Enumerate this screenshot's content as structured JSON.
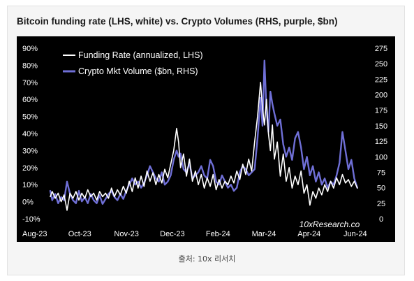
{
  "caption": "출처: 10x 리서치",
  "chart_data": {
    "type": "line",
    "title": "Bitcoin funding rate (LHS, white) vs. Crypto Volumes (RHS, purple, $bn)",
    "source_watermark": "10xResearch.co",
    "x_tick_labels": [
      "Aug-23",
      "Oct-23",
      "Nov-23",
      "Dec-23",
      "Feb-24",
      "Mar-24",
      "Apr-24",
      "Jun-24"
    ],
    "x_range": [
      "2023-08-01",
      "2024-06-10"
    ],
    "y_left": {
      "range": [
        -10,
        90
      ],
      "ticks": [
        -10,
        0,
        10,
        20,
        30,
        40,
        50,
        60,
        70,
        80,
        90
      ],
      "tick_labels": [
        "-10%",
        "0%",
        "10%",
        "20%",
        "30%",
        "40%",
        "50%",
        "60%",
        "70%",
        "80%",
        "90%"
      ]
    },
    "y_right": {
      "range": [
        0,
        275
      ],
      "ticks": [
        0,
        25,
        50,
        75,
        100,
        125,
        150,
        175,
        200,
        225,
        250,
        275
      ],
      "tick_labels": [
        "0",
        "25",
        "50",
        "75",
        "100",
        "125",
        "150",
        "175",
        "200",
        "225",
        "250",
        "275"
      ]
    },
    "legend": {
      "placement": "top-left"
    },
    "grid": false,
    "series": [
      {
        "name": "Funding Rate (annualized, LHS)",
        "axis": "left",
        "color": "#ffffff",
        "points": [
          [
            "2023-08-01",
            3
          ],
          [
            "2023-08-03",
            6
          ],
          [
            "2023-08-06",
            2
          ],
          [
            "2023-08-09",
            5
          ],
          [
            "2023-08-12",
            0
          ],
          [
            "2023-08-15",
            4
          ],
          [
            "2023-08-18",
            -5
          ],
          [
            "2023-08-21",
            5
          ],
          [
            "2023-08-24",
            2
          ],
          [
            "2023-08-27",
            6
          ],
          [
            "2023-08-30",
            1
          ],
          [
            "2023-09-02",
            5
          ],
          [
            "2023-09-05",
            2
          ],
          [
            "2023-09-08",
            7
          ],
          [
            "2023-09-11",
            3
          ],
          [
            "2023-09-14",
            5
          ],
          [
            "2023-09-17",
            1
          ],
          [
            "2023-09-20",
            6
          ],
          [
            "2023-09-23",
            3
          ],
          [
            "2023-09-26",
            5
          ],
          [
            "2023-09-29",
            2
          ],
          [
            "2023-10-02",
            8
          ],
          [
            "2023-10-05",
            3
          ],
          [
            "2023-10-08",
            7
          ],
          [
            "2023-10-11",
            4
          ],
          [
            "2023-10-14",
            9
          ],
          [
            "2023-10-17",
            5
          ],
          [
            "2023-10-20",
            12
          ],
          [
            "2023-10-23",
            6
          ],
          [
            "2023-10-26",
            14
          ],
          [
            "2023-10-29",
            8
          ],
          [
            "2023-11-01",
            15
          ],
          [
            "2023-11-04",
            9
          ],
          [
            "2023-11-07",
            18
          ],
          [
            "2023-11-10",
            12
          ],
          [
            "2023-11-13",
            17
          ],
          [
            "2023-11-16",
            10
          ],
          [
            "2023-11-19",
            16
          ],
          [
            "2023-11-22",
            11
          ],
          [
            "2023-11-25",
            19
          ],
          [
            "2023-11-28",
            14
          ],
          [
            "2023-12-01",
            22
          ],
          [
            "2023-12-04",
            30
          ],
          [
            "2023-12-07",
            43
          ],
          [
            "2023-12-09",
            35
          ],
          [
            "2023-12-11",
            20
          ],
          [
            "2023-12-14",
            28
          ],
          [
            "2023-12-17",
            15
          ],
          [
            "2023-12-20",
            25
          ],
          [
            "2023-12-23",
            12
          ],
          [
            "2023-12-26",
            18
          ],
          [
            "2023-12-29",
            10
          ],
          [
            "2024-01-01",
            16
          ],
          [
            "2024-01-04",
            8
          ],
          [
            "2024-01-07",
            14
          ],
          [
            "2024-01-10",
            9
          ],
          [
            "2024-01-13",
            16
          ],
          [
            "2024-01-16",
            7
          ],
          [
            "2024-01-19",
            13
          ],
          [
            "2024-01-22",
            8
          ],
          [
            "2024-01-25",
            12
          ],
          [
            "2024-01-28",
            10
          ],
          [
            "2024-01-31",
            15
          ],
          [
            "2024-02-03",
            11
          ],
          [
            "2024-02-06",
            18
          ],
          [
            "2024-02-09",
            13
          ],
          [
            "2024-02-12",
            22
          ],
          [
            "2024-02-15",
            16
          ],
          [
            "2024-02-18",
            25
          ],
          [
            "2024-02-21",
            18
          ],
          [
            "2024-02-24",
            35
          ],
          [
            "2024-02-27",
            50
          ],
          [
            "2024-03-01",
            70
          ],
          [
            "2024-03-03",
            55
          ],
          [
            "2024-03-05",
            45
          ],
          [
            "2024-03-07",
            60
          ],
          [
            "2024-03-09",
            40
          ],
          [
            "2024-03-11",
            30
          ],
          [
            "2024-03-13",
            45
          ],
          [
            "2024-03-15",
            25
          ],
          [
            "2024-03-18",
            35
          ],
          [
            "2024-03-21",
            15
          ],
          [
            "2024-03-24",
            28
          ],
          [
            "2024-03-27",
            12
          ],
          [
            "2024-03-30",
            20
          ],
          [
            "2024-04-02",
            8
          ],
          [
            "2024-04-05",
            15
          ],
          [
            "2024-04-08",
            10
          ],
          [
            "2024-04-11",
            18
          ],
          [
            "2024-04-14",
            5
          ],
          [
            "2024-04-17",
            10
          ],
          [
            "2024-04-20",
            -2
          ],
          [
            "2024-04-23",
            6
          ],
          [
            "2024-04-26",
            2
          ],
          [
            "2024-04-29",
            8
          ],
          [
            "2024-05-02",
            4
          ],
          [
            "2024-05-05",
            10
          ],
          [
            "2024-05-08",
            6
          ],
          [
            "2024-05-11",
            12
          ],
          [
            "2024-05-14",
            8
          ],
          [
            "2024-05-17",
            14
          ],
          [
            "2024-05-20",
            10
          ],
          [
            "2024-05-23",
            16
          ],
          [
            "2024-05-26",
            11
          ],
          [
            "2024-05-29",
            13
          ],
          [
            "2024-06-01",
            9
          ],
          [
            "2024-06-04",
            12
          ],
          [
            "2024-06-07",
            8
          ]
        ]
      },
      {
        "name": "Crypto Mkt Volume ($bn, RHS)",
        "axis": "right",
        "color": "#6f6fd6",
        "points": [
          [
            "2023-08-01",
            45
          ],
          [
            "2023-08-03",
            30
          ],
          [
            "2023-08-06",
            40
          ],
          [
            "2023-08-09",
            25
          ],
          [
            "2023-08-12",
            35
          ],
          [
            "2023-08-15",
            30
          ],
          [
            "2023-08-18",
            60
          ],
          [
            "2023-08-21",
            40
          ],
          [
            "2023-08-24",
            30
          ],
          [
            "2023-08-27",
            25
          ],
          [
            "2023-08-30",
            45
          ],
          [
            "2023-09-02",
            28
          ],
          [
            "2023-09-05",
            35
          ],
          [
            "2023-09-08",
            25
          ],
          [
            "2023-09-11",
            40
          ],
          [
            "2023-09-14",
            30
          ],
          [
            "2023-09-17",
            25
          ],
          [
            "2023-09-20",
            38
          ],
          [
            "2023-09-23",
            24
          ],
          [
            "2023-09-26",
            32
          ],
          [
            "2023-09-29",
            40
          ],
          [
            "2023-10-02",
            45
          ],
          [
            "2023-10-05",
            35
          ],
          [
            "2023-10-08",
            30
          ],
          [
            "2023-10-11",
            40
          ],
          [
            "2023-10-14",
            32
          ],
          [
            "2023-10-17",
            45
          ],
          [
            "2023-10-20",
            55
          ],
          [
            "2023-10-23",
            65
          ],
          [
            "2023-10-26",
            55
          ],
          [
            "2023-10-29",
            60
          ],
          [
            "2023-11-01",
            50
          ],
          [
            "2023-11-04",
            58
          ],
          [
            "2023-11-07",
            70
          ],
          [
            "2023-11-10",
            85
          ],
          [
            "2023-11-13",
            75
          ],
          [
            "2023-11-16",
            65
          ],
          [
            "2023-11-19",
            60
          ],
          [
            "2023-11-22",
            75
          ],
          [
            "2023-11-25",
            55
          ],
          [
            "2023-11-28",
            60
          ],
          [
            "2023-12-01",
            70
          ],
          [
            "2023-12-04",
            95
          ],
          [
            "2023-12-07",
            110
          ],
          [
            "2023-12-09",
            100
          ],
          [
            "2023-12-11",
            105
          ],
          [
            "2023-12-14",
            80
          ],
          [
            "2023-12-17",
            75
          ],
          [
            "2023-12-20",
            90
          ],
          [
            "2023-12-23",
            65
          ],
          [
            "2023-12-26",
            70
          ],
          [
            "2023-12-29",
            75
          ],
          [
            "2024-01-01",
            85
          ],
          [
            "2024-01-04",
            70
          ],
          [
            "2024-01-07",
            65
          ],
          [
            "2024-01-10",
            95
          ],
          [
            "2024-01-13",
            85
          ],
          [
            "2024-01-16",
            60
          ],
          [
            "2024-01-19",
            55
          ],
          [
            "2024-01-22",
            70
          ],
          [
            "2024-01-25",
            60
          ],
          [
            "2024-01-28",
            50
          ],
          [
            "2024-01-31",
            55
          ],
          [
            "2024-02-03",
            45
          ],
          [
            "2024-02-06",
            50
          ],
          [
            "2024-02-09",
            75
          ],
          [
            "2024-02-12",
            85
          ],
          [
            "2024-02-15",
            80
          ],
          [
            "2024-02-18",
            70
          ],
          [
            "2024-02-21",
            75
          ],
          [
            "2024-02-24",
            80
          ],
          [
            "2024-02-27",
            130
          ],
          [
            "2024-03-01",
            195
          ],
          [
            "2024-03-03",
            150
          ],
          [
            "2024-03-05",
            255
          ],
          [
            "2024-03-07",
            175
          ],
          [
            "2024-03-09",
            140
          ],
          [
            "2024-03-11",
            205
          ],
          [
            "2024-03-13",
            185
          ],
          [
            "2024-03-15",
            170
          ],
          [
            "2024-03-18",
            150
          ],
          [
            "2024-03-21",
            160
          ],
          [
            "2024-03-24",
            120
          ],
          [
            "2024-03-27",
            100
          ],
          [
            "2024-03-30",
            115
          ],
          [
            "2024-04-02",
            95
          ],
          [
            "2024-04-05",
            130
          ],
          [
            "2024-04-08",
            140
          ],
          [
            "2024-04-11",
            115
          ],
          [
            "2024-04-14",
            80
          ],
          [
            "2024-04-17",
            100
          ],
          [
            "2024-04-20",
            70
          ],
          [
            "2024-04-23",
            85
          ],
          [
            "2024-04-26",
            60
          ],
          [
            "2024-04-29",
            75
          ],
          [
            "2024-05-02",
            55
          ],
          [
            "2024-05-05",
            65
          ],
          [
            "2024-05-08",
            50
          ],
          [
            "2024-05-11",
            60
          ],
          [
            "2024-05-14",
            55
          ],
          [
            "2024-05-17",
            70
          ],
          [
            "2024-05-20",
            90
          ],
          [
            "2024-05-23",
            140
          ],
          [
            "2024-05-26",
            110
          ],
          [
            "2024-05-29",
            80
          ],
          [
            "2024-06-01",
            95
          ],
          [
            "2024-06-04",
            65
          ],
          [
            "2024-06-07",
            50
          ]
        ]
      }
    ]
  }
}
